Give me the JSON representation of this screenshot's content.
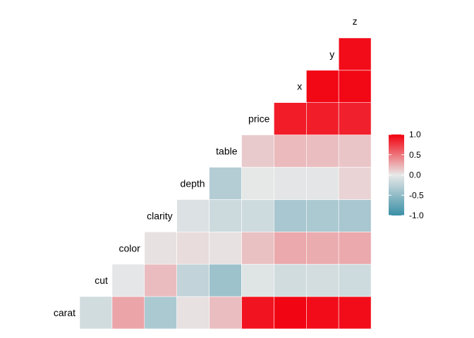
{
  "chart_data": {
    "type": "heatmap",
    "subtype": "lower-triangle correlation matrix",
    "variables": [
      "carat",
      "cut",
      "color",
      "clarity",
      "depth",
      "table",
      "price",
      "x",
      "y",
      "z"
    ],
    "pairs": [
      {
        "row": "cut",
        "col": "carat",
        "value": -0.13
      },
      {
        "row": "color",
        "col": "carat",
        "value": 0.29
      },
      {
        "row": "color",
        "col": "cut",
        "value": -0.02
      },
      {
        "row": "clarity",
        "col": "carat",
        "value": -0.35
      },
      {
        "row": "clarity",
        "col": "cut",
        "value": 0.19
      },
      {
        "row": "clarity",
        "col": "color",
        "value": 0.03
      },
      {
        "row": "depth",
        "col": "carat",
        "value": 0.03
      },
      {
        "row": "depth",
        "col": "cut",
        "value": -0.22
      },
      {
        "row": "depth",
        "col": "color",
        "value": 0.05
      },
      {
        "row": "depth",
        "col": "clarity",
        "value": -0.07
      },
      {
        "row": "table",
        "col": "carat",
        "value": 0.18
      },
      {
        "row": "table",
        "col": "cut",
        "value": -0.43
      },
      {
        "row": "table",
        "col": "color",
        "value": 0.03
      },
      {
        "row": "table",
        "col": "clarity",
        "value": -0.16
      },
      {
        "row": "table",
        "col": "depth",
        "value": -0.3
      },
      {
        "row": "price",
        "col": "carat",
        "value": 0.92
      },
      {
        "row": "price",
        "col": "cut",
        "value": -0.05
      },
      {
        "row": "price",
        "col": "color",
        "value": 0.17
      },
      {
        "row": "price",
        "col": "clarity",
        "value": -0.15
      },
      {
        "row": "price",
        "col": "depth",
        "value": -0.01
      },
      {
        "row": "price",
        "col": "table",
        "value": 0.13
      },
      {
        "row": "x",
        "col": "carat",
        "value": 0.98
      },
      {
        "row": "x",
        "col": "cut",
        "value": -0.13
      },
      {
        "row": "x",
        "col": "color",
        "value": 0.27
      },
      {
        "row": "x",
        "col": "clarity",
        "value": -0.37
      },
      {
        "row": "x",
        "col": "depth",
        "value": -0.03
      },
      {
        "row": "x",
        "col": "table",
        "value": 0.2
      },
      {
        "row": "x",
        "col": "price",
        "value": 0.88
      },
      {
        "row": "y",
        "col": "carat",
        "value": 0.95
      },
      {
        "row": "y",
        "col": "cut",
        "value": -0.12
      },
      {
        "row": "y",
        "col": "color",
        "value": 0.26
      },
      {
        "row": "y",
        "col": "clarity",
        "value": -0.35
      },
      {
        "row": "y",
        "col": "depth",
        "value": -0.03
      },
      {
        "row": "y",
        "col": "table",
        "value": 0.18
      },
      {
        "row": "y",
        "col": "price",
        "value": 0.87
      },
      {
        "row": "y",
        "col": "x",
        "value": 0.97
      },
      {
        "row": "z",
        "col": "carat",
        "value": 0.95
      },
      {
        "row": "z",
        "col": "cut",
        "value": -0.15
      },
      {
        "row": "z",
        "col": "color",
        "value": 0.27
      },
      {
        "row": "z",
        "col": "clarity",
        "value": -0.37
      },
      {
        "row": "z",
        "col": "depth",
        "value": 0.09
      },
      {
        "row": "z",
        "col": "table",
        "value": 0.15
      },
      {
        "row": "z",
        "col": "price",
        "value": 0.86
      },
      {
        "row": "z",
        "col": "x",
        "value": 0.97
      },
      {
        "row": "z",
        "col": "y",
        "value": 0.95
      }
    ],
    "color_scale": {
      "low": "#3A8FA6",
      "mid": "#E8E8E8",
      "high": "#F2000E",
      "range": [
        -1,
        1
      ]
    },
    "legend": {
      "position": "right",
      "ticks": [
        "1.0",
        "0.5",
        "0.0",
        "-0.5",
        "-1.0"
      ]
    },
    "title": "",
    "xlabel": "",
    "ylabel": ""
  }
}
